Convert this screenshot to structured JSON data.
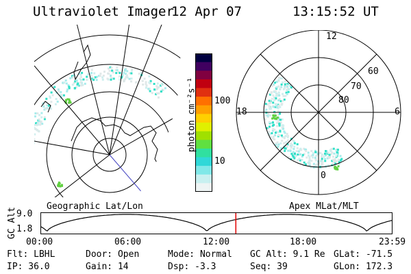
{
  "header": {
    "title": "Ultraviolet Imager",
    "date": "12 Apr 07",
    "time": "13:15:52 UT"
  },
  "left_map": {
    "caption": "Geographic Lat/Lon"
  },
  "right_map": {
    "caption": "Apex MLat/MLT",
    "mlt_labels": {
      "top": "12",
      "left": "18",
      "right": "6",
      "bottom": "0"
    },
    "lat_labels": [
      "80",
      "70",
      "60"
    ]
  },
  "colorbar": {
    "unit_label": "photon cm⁻²s⁻¹",
    "tick_labels": [
      "100",
      "10"
    ],
    "colors": [
      "#000040",
      "#400060",
      "#800040",
      "#c00010",
      "#e03010",
      "#ff7000",
      "#ffa000",
      "#ffd000",
      "#e0f000",
      "#a0e000",
      "#60e040",
      "#30e0a0",
      "#30d8d8",
      "#80e8e8",
      "#c8f0f0",
      "#eef4f4"
    ]
  },
  "timeline": {
    "axis_label": "GC Alt",
    "y_ticks": [
      "9.0",
      "1.8"
    ],
    "x_ticks": [
      "00:00",
      "06:00",
      "12:00",
      "18:00",
      "23:59"
    ],
    "current_time_fraction": 0.555
  },
  "status": {
    "filter": "Flt: LBHL",
    "door": "Door: Open",
    "mode": "Mode: Normal",
    "gc_alt": "GC Alt: 9.1 Re",
    "glat": "GLat: -71.5",
    "ip": "IP: 36.0",
    "gain": "Gain: 14",
    "dsp": "Dsp:   -3.3",
    "seq": "Seq: 39",
    "glon": "GLon: 172.3"
  },
  "colors": {
    "aurora_cyan": "#30e0c8",
    "aurora_green": "#60d040",
    "cursor": "#e00000",
    "grid": "#000000"
  }
}
